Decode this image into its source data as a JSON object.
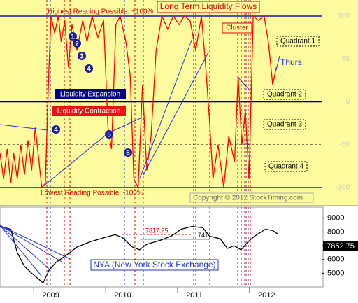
{
  "chart_data": [
    {
      "type": "line",
      "title": "Long Term Liquidity Flows",
      "ceiling_label": "Highest Reading Possible: +100%",
      "floor_label": "Lowest Reading Possible: -100%",
      "cluster_label": "Cluster",
      "quadrant_labels": [
        "Quadrant 1",
        "Quadrant 2",
        "Quadrant 3",
        "Quadrant 4"
      ],
      "thurs_label": "Thurs.",
      "expansion_label": "Liquidity Expansion",
      "contraction_label": "Liquidity Contraction",
      "markers": [
        "1",
        "2",
        "3",
        "4",
        "4",
        "5",
        "6"
      ],
      "copyright": "Copyright © 2012 StockTiming.com",
      "xlim": [
        2008.53,
        2013.0
      ],
      "ylim": [
        -100,
        100
      ],
      "yticks": [
        -100,
        -50,
        0,
        50,
        100
      ],
      "series": [
        {
          "color": "#ff0000",
          "x": [
            2008.53,
            2008.58,
            2008.63,
            2008.68,
            2008.72,
            2008.77,
            2008.82,
            2008.87,
            2008.92,
            2008.97,
            2009.02,
            2009.06,
            2009.11,
            2009.16,
            2009.21,
            2009.24,
            2009.29,
            2009.34,
            2009.38,
            2009.43,
            2009.48,
            2009.53,
            2009.6,
            2009.68,
            2009.74,
            2009.81,
            2009.89,
            2009.97,
            2010.03,
            2010.08,
            2010.14,
            2010.2,
            2010.28,
            2010.34,
            2010.39,
            2010.45,
            2010.51,
            2010.57,
            2010.63,
            2010.7,
            2010.78,
            2010.86,
            2010.94,
            2011.02,
            2011.09,
            2011.17,
            2011.25,
            2011.33,
            2011.39,
            2011.44,
            2011.49,
            2011.56,
            2011.64,
            2011.71,
            2011.79,
            2011.84,
            2011.89,
            2011.94,
            2011.99,
            2012.05,
            2012.12,
            2012.2,
            2012.26,
            2012.32,
            2012.37
          ],
          "values": [
            -60,
            -90,
            -55,
            -95,
            -60,
            -90,
            -50,
            -85,
            -45,
            -80,
            -30,
            -60,
            -100,
            -95,
            40,
            100,
            80,
            100,
            70,
            95,
            40,
            90,
            60,
            95,
            70,
            100,
            75,
            95,
            -30,
            -55,
            90,
            100,
            70,
            30,
            -90,
            -100,
            20,
            -80,
            -40,
            60,
            100,
            85,
            100,
            90,
            100,
            95,
            60,
            100,
            40,
            -20,
            -90,
            -50,
            -100,
            -40,
            -70,
            30,
            -50,
            -10,
            -90,
            100,
            95,
            100,
            70,
            20,
            40
          ]
        }
      ]
    },
    {
      "type": "line",
      "title": "NYA (New York Stock Exchange)",
      "levels": [
        7817.75,
        7471
      ],
      "xlim": [
        2008.53,
        2013.0
      ],
      "xticks": [
        2009,
        2010,
        2011,
        2012
      ],
      "ylim": [
        4000,
        9700
      ],
      "yticks": [
        5000,
        6000,
        7000,
        8000,
        9000
      ],
      "series": [
        {
          "color": "#000000",
          "x": [
            2008.53,
            2008.68,
            2008.77,
            2008.87,
            2008.97,
            2009.06,
            2009.13,
            2009.21,
            2009.31,
            2009.45,
            2009.6,
            2009.79,
            2009.99,
            2010.13,
            2010.23,
            2010.37,
            2010.47,
            2010.57,
            2010.76,
            2010.91,
            2011.05,
            2011.2,
            2011.35,
            2011.44,
            2011.59,
            2011.69,
            2011.78,
            2011.88,
            2011.98,
            2012.07,
            2012.22,
            2012.32,
            2012.39
          ],
          "values": [
            8400,
            8200,
            6500,
            5500,
            5000,
            4600,
            4300,
            5200,
            5800,
            6300,
            6900,
            7300,
            7600,
            7800,
            7600,
            6900,
            6700,
            7100,
            7400,
            7700,
            8200,
            8400,
            8300,
            7700,
            7500,
            6800,
            7000,
            6700,
            7300,
            7700,
            8200,
            8100,
            7852.75
          ]
        }
      ]
    }
  ]
}
